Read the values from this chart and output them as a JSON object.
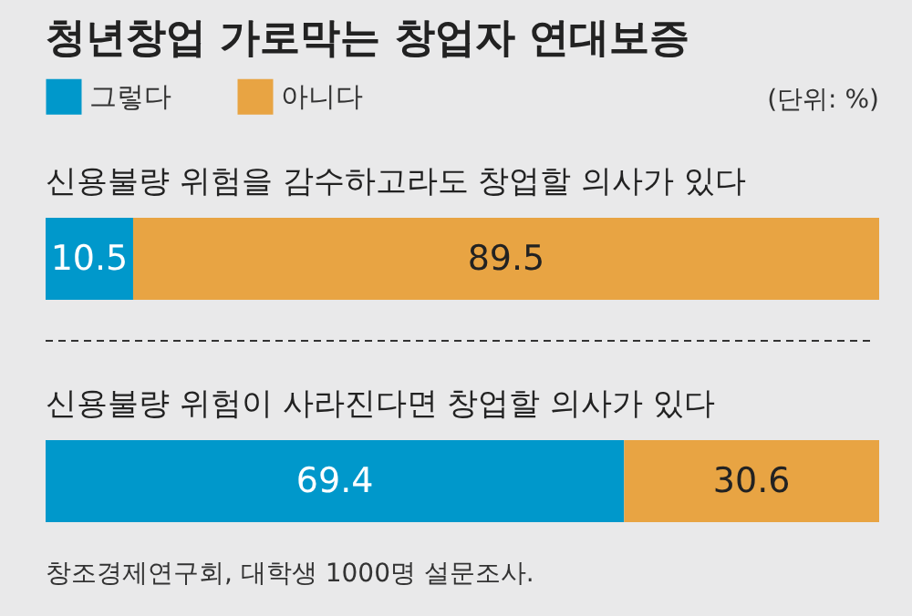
{
  "chart_data": {
    "type": "bar",
    "title": "청년창업 가로막는 창업자 연대보증",
    "categories": [
      "신용불량 위험을 감수하고라도 창업할 의사가 있다",
      "신용불량 위험이 사라진다면 창업할 의사가 있다"
    ],
    "series": [
      {
        "name": "그렇다",
        "color": "#0098cb",
        "values": [
          10.5,
          69.4
        ]
      },
      {
        "name": "아니다",
        "color": "#e8a443",
        "values": [
          89.5,
          30.6
        ]
      }
    ],
    "orientation": "horizontal",
    "stacked": true,
    "data_labels": true,
    "xlim": [
      0,
      100
    ],
    "tick_labels": "y",
    "legend": "top left",
    "annotations": [
      "(단위: %)",
      "창조경제연구회, 대학생 1000명 설문조사."
    ]
  }
}
